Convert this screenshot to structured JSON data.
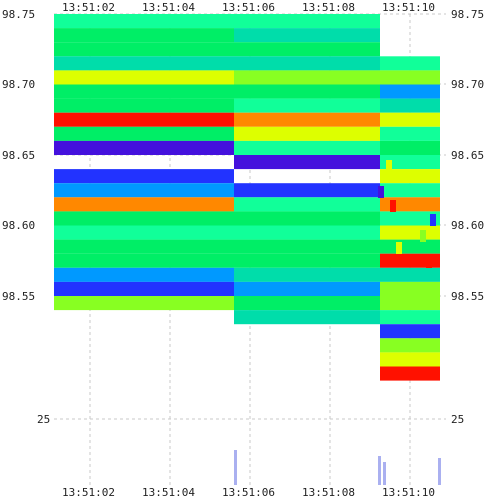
{
  "chart_data": {
    "type": "heatmap",
    "x_ticks": [
      "13:51:02",
      "13:51:04",
      "13:51:06",
      "13:51:08",
      "13:51:10"
    ],
    "y_ticks_price": [
      "98.75",
      "98.70",
      "98.65",
      "98.60",
      "98.55"
    ],
    "y_ticks_volume": [
      "25"
    ],
    "price_range": [
      98.505,
      98.75
    ],
    "grid": true,
    "colors": {
      "green": "#00ee66",
      "cyan": "#00ddaa",
      "mint": "#11ff99",
      "yellow": "#ddff00",
      "red": "#ff1100",
      "orange": "#ff8800",
      "blue": "#2233ff",
      "purple": "#4411dd",
      "skyblue": "#0099ff",
      "lime": "#88ff22",
      "volume": "#aab0f0"
    }
  }
}
